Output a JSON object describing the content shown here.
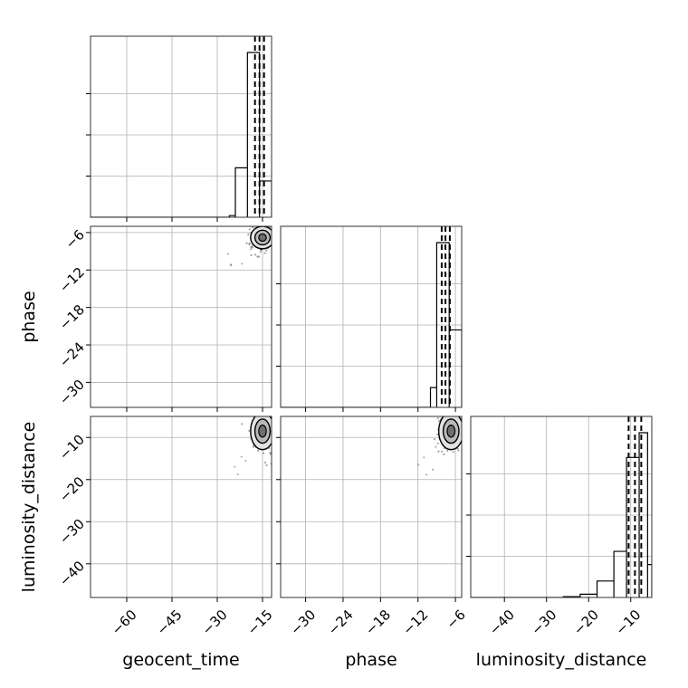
{
  "chart_data": {
    "type": "corner",
    "parameters": [
      "geocent_time",
      "phase",
      "luminosity_distance"
    ],
    "labels": {
      "geocent_time": "geocent_time",
      "phase": "phase",
      "luminosity_distance": "luminosity_distance"
    },
    "ranges": {
      "geocent_time": [
        -72,
        -12
      ],
      "phase": [
        -34,
        -5
      ],
      "luminosity_distance": [
        -48,
        -5
      ]
    },
    "ticks": {
      "geocent_time": [
        -60,
        -45,
        -30,
        -15
      ],
      "phase": [
        -30,
        -24,
        -18,
        -12,
        -6
      ],
      "luminosity_distance": [
        -40,
        -30,
        -20,
        -10
      ]
    },
    "grid": true,
    "histograms": {
      "geocent_time": {
        "bins": [
          [
            -26,
            -24,
            0.01
          ],
          [
            -24,
            -20,
            0.3
          ],
          [
            -20,
            -16,
            1.0
          ],
          [
            -16,
            -12,
            0.22
          ]
        ],
        "quantiles": [
          -17.5,
          -16.0,
          -14.5
        ]
      },
      "phase": {
        "bins": [
          [
            -10,
            -9,
            0.12
          ],
          [
            -9,
            -7,
            1.0
          ],
          [
            -7,
            -5,
            0.47
          ]
        ],
        "quantiles": [
          -8.2,
          -7.6,
          -6.9
        ]
      },
      "luminosity_distance": {
        "bins": [
          [
            -26,
            -22,
            0.005
          ],
          [
            -22,
            -18,
            0.02
          ],
          [
            -18,
            -14,
            0.1
          ],
          [
            -14,
            -11,
            0.28
          ],
          [
            -11,
            -8,
            0.85
          ],
          [
            -8,
            -6,
            1.0
          ],
          [
            -6,
            -5,
            0.2
          ]
        ],
        "quantiles": [
          -10.5,
          -9.0,
          -7.5
        ]
      }
    },
    "pairs": [
      {
        "x": "geocent_time",
        "y": "phase",
        "center": [
          -15,
          -6.8
        ],
        "spread": [
          1.8,
          0.9
        ]
      },
      {
        "x": "geocent_time",
        "y": "luminosity_distance",
        "center": [
          -15,
          -8.5
        ],
        "spread": [
          1.8,
          2.2
        ]
      },
      {
        "x": "phase",
        "y": "luminosity_distance",
        "center": [
          -6.7,
          -8.5
        ],
        "spread": [
          0.9,
          2.2
        ]
      }
    ]
  }
}
